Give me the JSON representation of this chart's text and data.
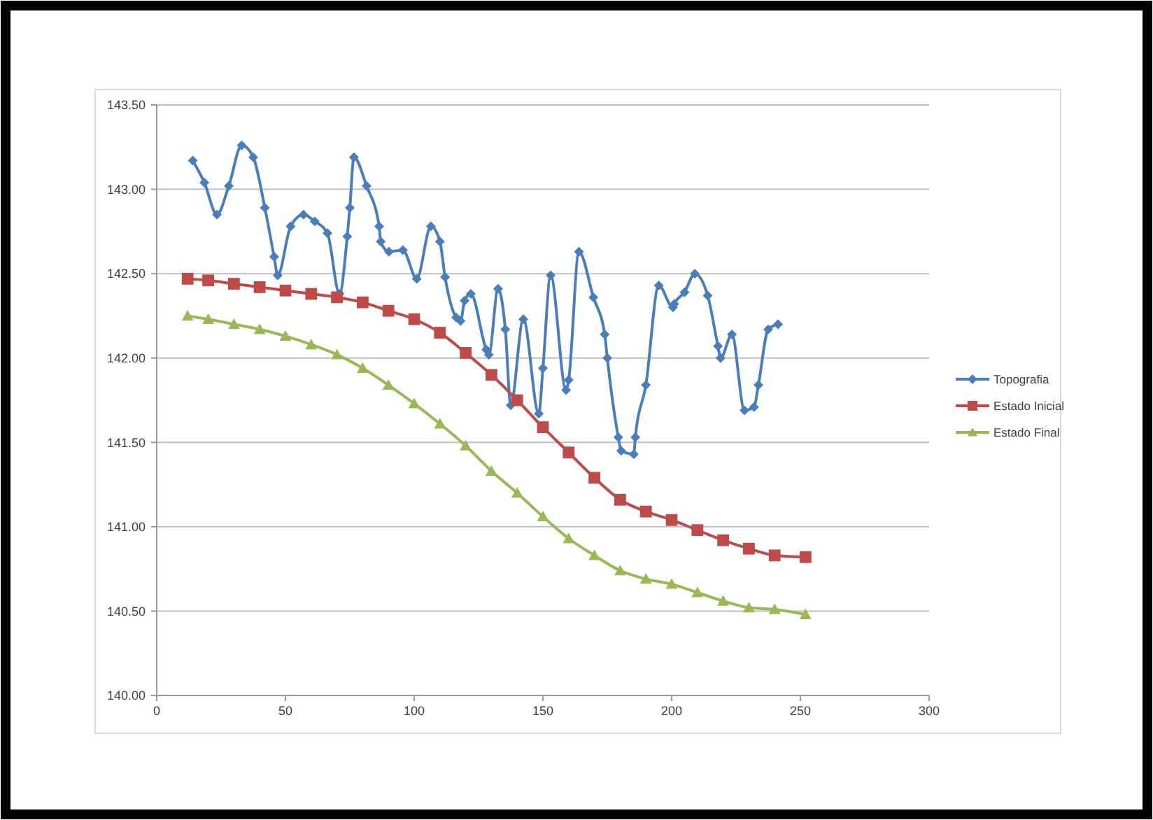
{
  "chart_data": {
    "type": "line",
    "xlim": [
      0,
      300
    ],
    "xticks": [
      0,
      50,
      100,
      150,
      200,
      250,
      300
    ],
    "ylim": [
      140,
      143.5
    ],
    "yticks": [
      {
        "value": 140,
        "label": "140.00"
      },
      {
        "value": 140.5,
        "label": "140.50"
      },
      {
        "value": 141,
        "label": "141.00"
      },
      {
        "value": 141.5,
        "label": "141.50"
      },
      {
        "value": 142,
        "label": "142.00"
      },
      {
        "value": 142.5,
        "label": "142.50"
      },
      {
        "value": 143,
        "label": "143.00"
      },
      {
        "value": 143.5,
        "label": "143.50"
      }
    ],
    "grid": "y",
    "legend": "right",
    "series": [
      {
        "name": "Topografia",
        "color": "#4a7ebb",
        "marker": "diamond",
        "x": [
          14,
          18.5,
          23.4,
          28,
          33,
          37.5,
          42,
          45.6,
          47,
          52,
          57,
          61.4,
          66.3,
          71,
          74,
          75,
          76.6,
          81.5,
          86.4,
          87,
          90.2,
          95.6,
          101,
          106.5,
          110,
          112,
          116.3,
          118,
          119.6,
          122,
          128,
          129,
          132.6,
          135.4,
          137.5,
          142.4,
          148.4,
          150,
          153,
          159,
          160,
          164,
          169.6,
          174,
          175,
          179.3,
          180.4,
          185.3,
          185.9,
          190,
          195,
          200.5,
          201,
          205,
          209,
          214,
          218,
          219,
          223.4,
          228.3,
          232,
          233.7,
          237.5,
          241.3
        ],
        "values": [
          143.17,
          143.04,
          142.85,
          143.02,
          143.26,
          143.19,
          142.89,
          142.6,
          142.49,
          142.78,
          142.85,
          142.81,
          142.74,
          142.38,
          142.72,
          142.89,
          143.19,
          143.02,
          142.78,
          142.69,
          142.63,
          142.64,
          142.47,
          142.78,
          142.69,
          142.48,
          142.24,
          142.22,
          142.34,
          142.38,
          142.05,
          142.02,
          142.41,
          142.17,
          141.72,
          142.23,
          141.67,
          141.94,
          142.49,
          141.81,
          141.87,
          142.63,
          142.36,
          142.14,
          142,
          141.53,
          141.45,
          141.43,
          141.53,
          141.84,
          142.43,
          142.3,
          142.32,
          142.39,
          142.5,
          142.37,
          142.07,
          142,
          142.14,
          141.69,
          141.71,
          141.84,
          142.17,
          142.2
        ]
      },
      {
        "name": "Estado Inicial",
        "color": "#be4b48",
        "marker": "square",
        "x": [
          12,
          20,
          30,
          40,
          50,
          60,
          70,
          80,
          90,
          100,
          110,
          120,
          130,
          140,
          150,
          160,
          170,
          180,
          190,
          200,
          210,
          220,
          230,
          240,
          252
        ],
        "values": [
          142.47,
          142.46,
          142.44,
          142.42,
          142.4,
          142.38,
          142.36,
          142.33,
          142.28,
          142.23,
          142.15,
          142.03,
          141.9,
          141.75,
          141.59,
          141.44,
          141.29,
          141.16,
          141.09,
          141.04,
          140.98,
          140.92,
          140.87,
          140.83,
          140.82
        ]
      },
      {
        "name": "Estado Final",
        "color": "#98b954",
        "marker": "triangle",
        "x": [
          12,
          20,
          30,
          40,
          50,
          60,
          70,
          80,
          90,
          100,
          110,
          120,
          130,
          140,
          150,
          160,
          170,
          180,
          190,
          200,
          210,
          220,
          230,
          240,
          252
        ],
        "values": [
          142.25,
          142.23,
          142.2,
          142.17,
          142.13,
          142.08,
          142.02,
          141.94,
          141.84,
          141.73,
          141.61,
          141.48,
          141.33,
          141.2,
          141.06,
          140.93,
          140.83,
          140.74,
          140.69,
          140.66,
          140.61,
          140.56,
          140.52,
          140.51,
          140.48
        ]
      }
    ]
  }
}
